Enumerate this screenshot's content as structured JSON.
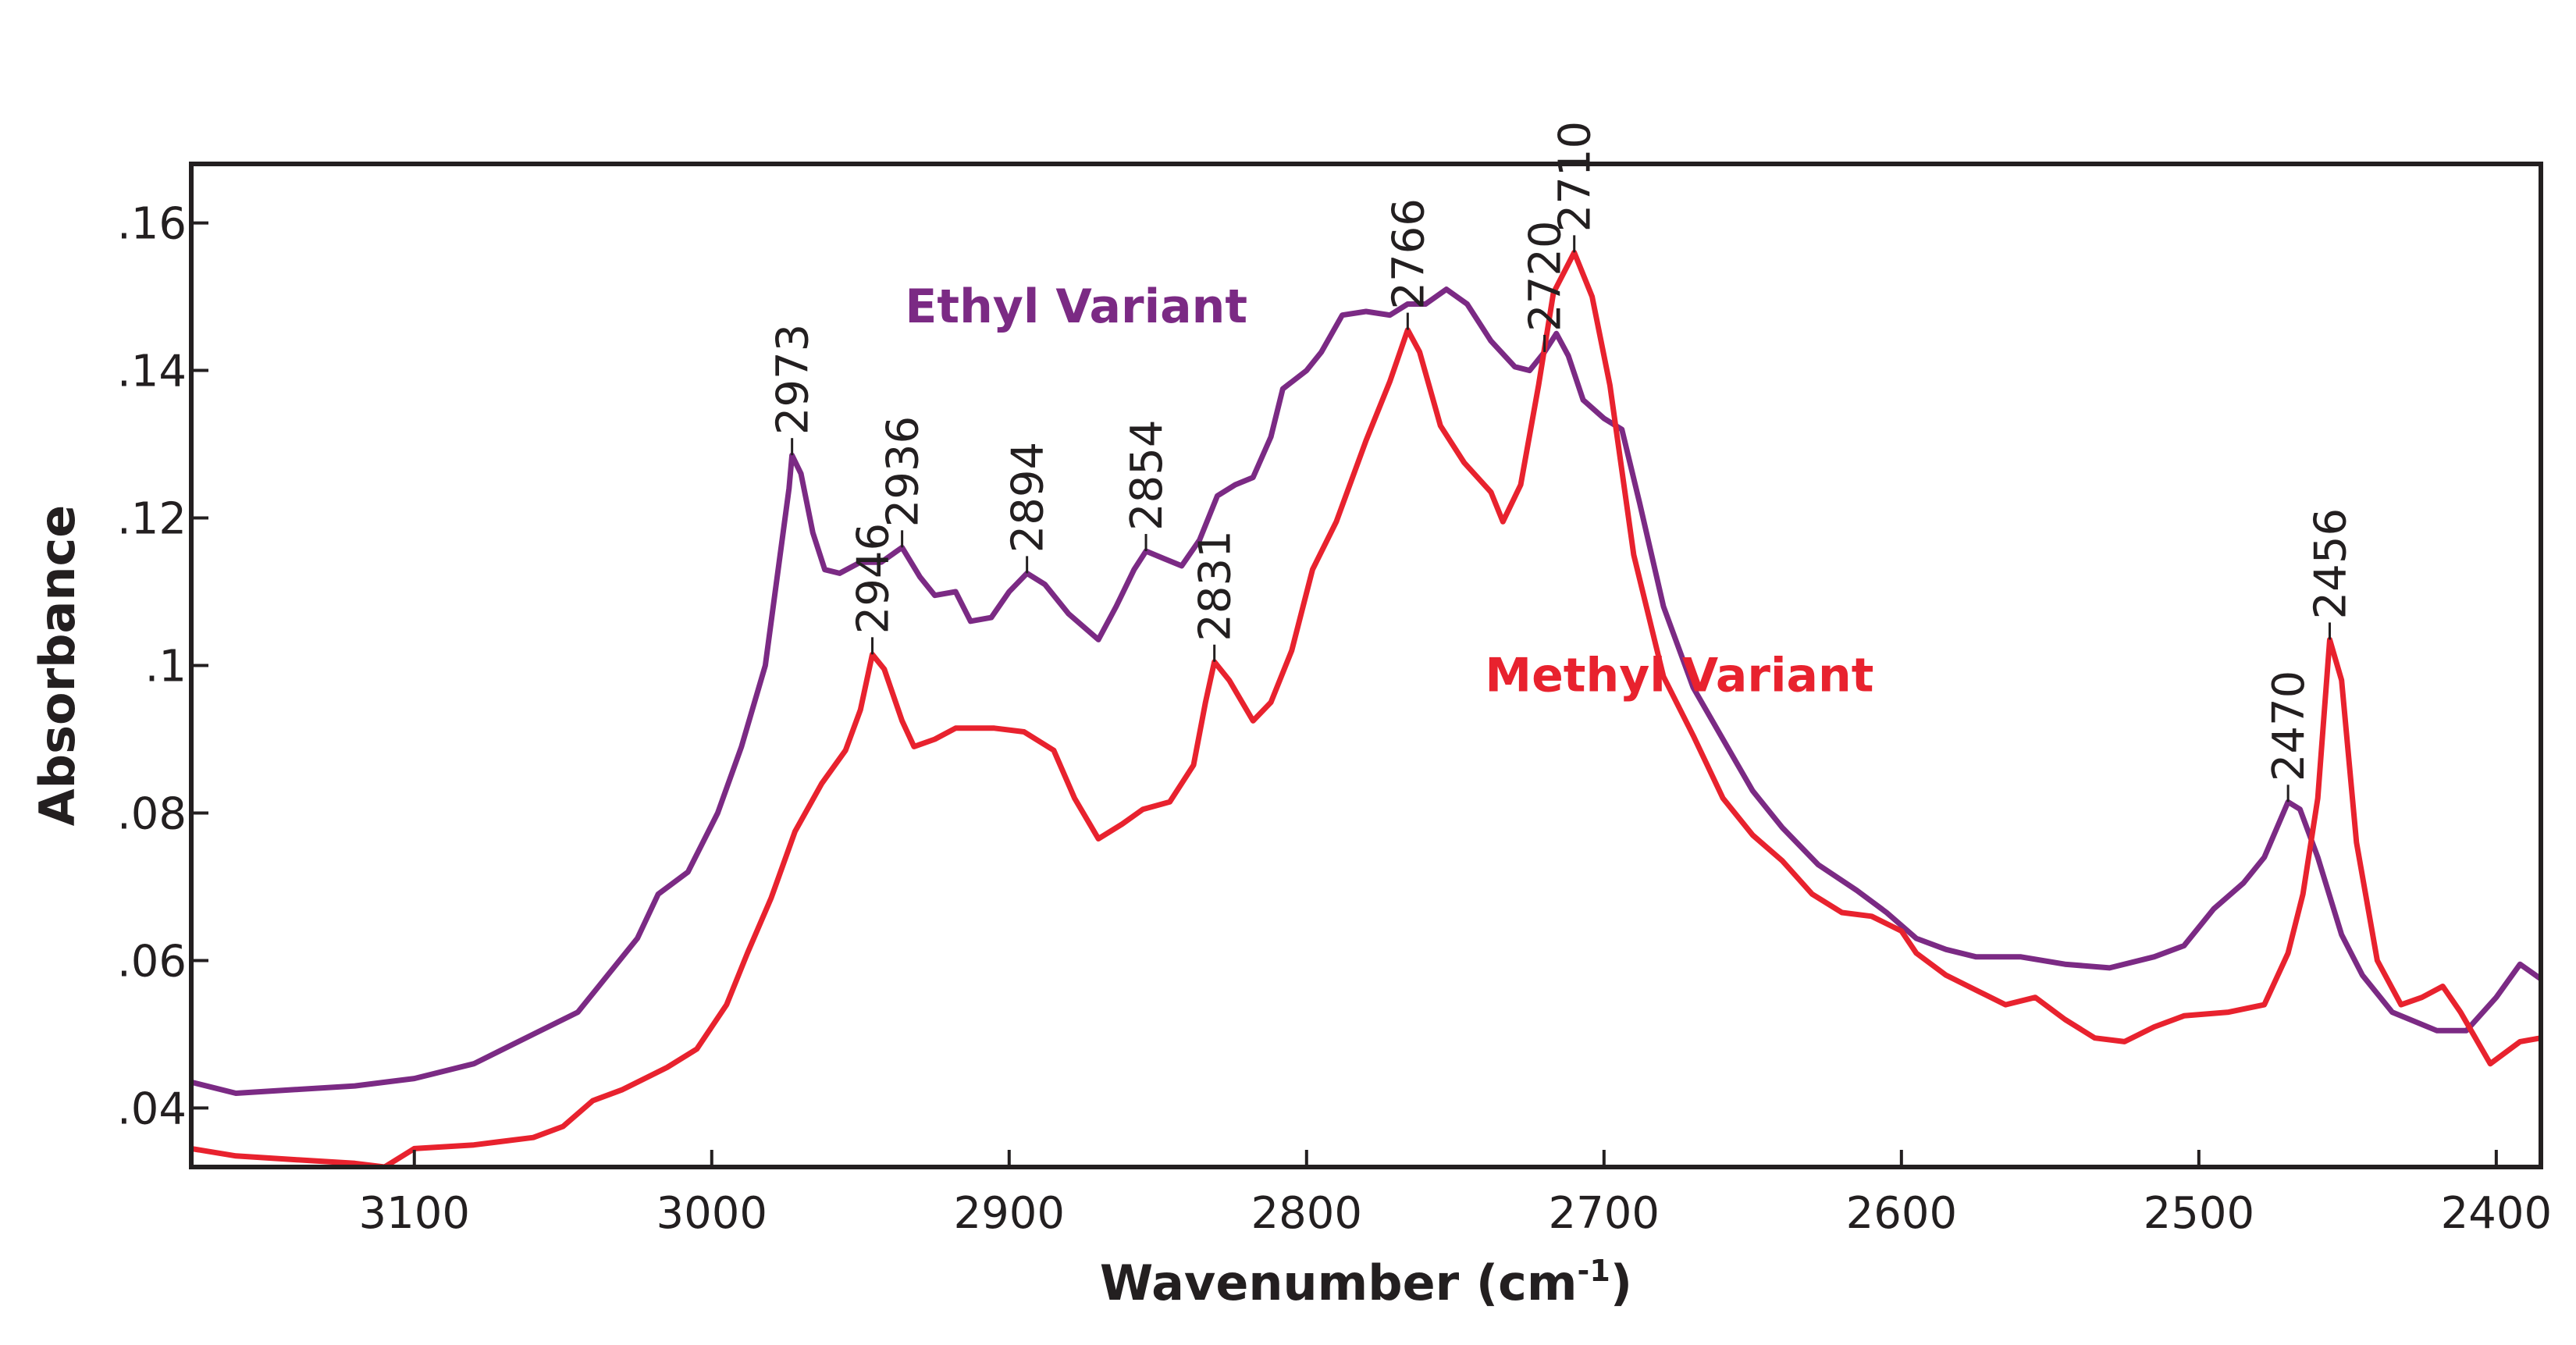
{
  "chart_data": {
    "type": "line",
    "title": "",
    "xlabel": "Wavenumber (cm",
    "xlabel_sup": "-1",
    "xlabel_close": ")",
    "ylabel": "Absorbance",
    "xlim": [
      3175,
      2385
    ],
    "ylim": [
      0.032,
      0.168
    ],
    "x_ticks": [
      {
        "value": 3100,
        "label": "3100"
      },
      {
        "value": 3000,
        "label": "3000"
      },
      {
        "value": 2900,
        "label": "2900"
      },
      {
        "value": 2800,
        "label": "2800"
      },
      {
        "value": 2700,
        "label": "2700"
      },
      {
        "value": 2600,
        "label": "2600"
      },
      {
        "value": 2500,
        "label": "2500"
      },
      {
        "value": 2400,
        "label": "2400"
      }
    ],
    "y_ticks": [
      {
        "value": 0.04,
        "label": ".04"
      },
      {
        "value": 0.06,
        "label": ".06"
      },
      {
        "value": 0.08,
        "label": ".08"
      },
      {
        "value": 0.1,
        "label": ".1"
      },
      {
        "value": 0.12,
        "label": ".12"
      },
      {
        "value": 0.14,
        "label": ".14"
      },
      {
        "value": 0.16,
        "label": ".16"
      }
    ],
    "series": [
      {
        "name": "Ethyl Variant",
        "color": "#7b2a84",
        "label_at": [
          2935,
          0.1465
        ],
        "points": [
          [
            3175,
            0.0435
          ],
          [
            3160,
            0.042
          ],
          [
            3140,
            0.0425
          ],
          [
            3120,
            0.043
          ],
          [
            3100,
            0.044
          ],
          [
            3080,
            0.046
          ],
          [
            3060,
            0.05
          ],
          [
            3045,
            0.053
          ],
          [
            3035,
            0.058
          ],
          [
            3025,
            0.063
          ],
          [
            3018,
            0.069
          ],
          [
            3008,
            0.072
          ],
          [
            2998,
            0.08
          ],
          [
            2990,
            0.089
          ],
          [
            2982,
            0.1
          ],
          [
            2978,
            0.112
          ],
          [
            2974,
            0.124
          ],
          [
            2973,
            0.1285
          ],
          [
            2970,
            0.126
          ],
          [
            2966,
            0.118
          ],
          [
            2962,
            0.113
          ],
          [
            2957,
            0.1125
          ],
          [
            2950,
            0.114
          ],
          [
            2943,
            0.114
          ],
          [
            2936,
            0.116
          ],
          [
            2930,
            0.112
          ],
          [
            2925,
            0.1095
          ],
          [
            2918,
            0.11
          ],
          [
            2913,
            0.106
          ],
          [
            2906,
            0.1065
          ],
          [
            2900,
            0.11
          ],
          [
            2894,
            0.1125
          ],
          [
            2888,
            0.111
          ],
          [
            2880,
            0.107
          ],
          [
            2870,
            0.1035
          ],
          [
            2864,
            0.108
          ],
          [
            2858,
            0.113
          ],
          [
            2854,
            0.1155
          ],
          [
            2848,
            0.1145
          ],
          [
            2842,
            0.1135
          ],
          [
            2836,
            0.117
          ],
          [
            2830,
            0.123
          ],
          [
            2824,
            0.1245
          ],
          [
            2818,
            0.1255
          ],
          [
            2812,
            0.131
          ],
          [
            2808,
            0.1375
          ],
          [
            2800,
            0.14
          ],
          [
            2795,
            0.1425
          ],
          [
            2788,
            0.1475
          ],
          [
            2780,
            0.148
          ],
          [
            2772,
            0.1475
          ],
          [
            2766,
            0.149
          ],
          [
            2760,
            0.149
          ],
          [
            2753,
            0.151
          ],
          [
            2746,
            0.149
          ],
          [
            2738,
            0.144
          ],
          [
            2730,
            0.1405
          ],
          [
            2725,
            0.14
          ],
          [
            2720,
            0.1425
          ],
          [
            2716,
            0.145
          ],
          [
            2712,
            0.142
          ],
          [
            2707,
            0.136
          ],
          [
            2700,
            0.1335
          ],
          [
            2694,
            0.132
          ],
          [
            2688,
            0.122
          ],
          [
            2680,
            0.108
          ],
          [
            2670,
            0.097
          ],
          [
            2660,
            0.09
          ],
          [
            2650,
            0.083
          ],
          [
            2640,
            0.078
          ],
          [
            2628,
            0.073
          ],
          [
            2615,
            0.0695
          ],
          [
            2605,
            0.0665
          ],
          [
            2595,
            0.063
          ],
          [
            2585,
            0.0615
          ],
          [
            2575,
            0.0605
          ],
          [
            2560,
            0.0605
          ],
          [
            2545,
            0.0595
          ],
          [
            2530,
            0.059
          ],
          [
            2515,
            0.0605
          ],
          [
            2505,
            0.062
          ],
          [
            2495,
            0.067
          ],
          [
            2485,
            0.0705
          ],
          [
            2478,
            0.074
          ],
          [
            2470,
            0.0815
          ],
          [
            2466,
            0.0805
          ],
          [
            2460,
            0.074
          ],
          [
            2452,
            0.0635
          ],
          [
            2445,
            0.058
          ],
          [
            2435,
            0.053
          ],
          [
            2420,
            0.0505
          ],
          [
            2410,
            0.0505
          ],
          [
            2400,
            0.055
          ],
          [
            2392,
            0.0595
          ],
          [
            2385,
            0.0575
          ]
        ]
      },
      {
        "name": "Methyl Variant",
        "color": "#e8222e",
        "label_at": [
          2740,
          0.0965
        ],
        "points": [
          [
            3175,
            0.0345
          ],
          [
            3160,
            0.0335
          ],
          [
            3140,
            0.033
          ],
          [
            3120,
            0.0325
          ],
          [
            3110,
            0.032
          ],
          [
            3100,
            0.0345
          ],
          [
            3080,
            0.035
          ],
          [
            3060,
            0.036
          ],
          [
            3050,
            0.0375
          ],
          [
            3040,
            0.041
          ],
          [
            3030,
            0.0425
          ],
          [
            3015,
            0.0455
          ],
          [
            3005,
            0.048
          ],
          [
            2995,
            0.054
          ],
          [
            2988,
            0.061
          ],
          [
            2980,
            0.0685
          ],
          [
            2972,
            0.0775
          ],
          [
            2963,
            0.084
          ],
          [
            2955,
            0.0885
          ],
          [
            2950,
            0.094
          ],
          [
            2946,
            0.1015
          ],
          [
            2942,
            0.0995
          ],
          [
            2936,
            0.0925
          ],
          [
            2932,
            0.089
          ],
          [
            2925,
            0.09
          ],
          [
            2918,
            0.0915
          ],
          [
            2905,
            0.0915
          ],
          [
            2895,
            0.091
          ],
          [
            2885,
            0.0885
          ],
          [
            2878,
            0.082
          ],
          [
            2870,
            0.0765
          ],
          [
            2862,
            0.0785
          ],
          [
            2855,
            0.0805
          ],
          [
            2846,
            0.0815
          ],
          [
            2838,
            0.0865
          ],
          [
            2834,
            0.095
          ],
          [
            2831,
            0.1005
          ],
          [
            2826,
            0.098
          ],
          [
            2818,
            0.0925
          ],
          [
            2812,
            0.095
          ],
          [
            2805,
            0.102
          ],
          [
            2798,
            0.113
          ],
          [
            2790,
            0.1195
          ],
          [
            2780,
            0.1305
          ],
          [
            2772,
            0.1385
          ],
          [
            2766,
            0.1455
          ],
          [
            2762,
            0.1425
          ],
          [
            2755,
            0.1325
          ],
          [
            2747,
            0.1275
          ],
          [
            2738,
            0.1235
          ],
          [
            2734,
            0.1195
          ],
          [
            2728,
            0.1245
          ],
          [
            2722,
            0.138
          ],
          [
            2717,
            0.1505
          ],
          [
            2710,
            0.156
          ],
          [
            2704,
            0.15
          ],
          [
            2698,
            0.138
          ],
          [
            2690,
            0.115
          ],
          [
            2680,
            0.0985
          ],
          [
            2670,
            0.0905
          ],
          [
            2660,
            0.082
          ],
          [
            2650,
            0.077
          ],
          [
            2640,
            0.0735
          ],
          [
            2630,
            0.069
          ],
          [
            2620,
            0.0665
          ],
          [
            2610,
            0.066
          ],
          [
            2600,
            0.064
          ],
          [
            2595,
            0.061
          ],
          [
            2585,
            0.058
          ],
          [
            2575,
            0.056
          ],
          [
            2565,
            0.054
          ],
          [
            2555,
            0.055
          ],
          [
            2545,
            0.052
          ],
          [
            2535,
            0.0495
          ],
          [
            2525,
            0.049
          ],
          [
            2515,
            0.051
          ],
          [
            2505,
            0.0525
          ],
          [
            2490,
            0.053
          ],
          [
            2478,
            0.054
          ],
          [
            2470,
            0.061
          ],
          [
            2465,
            0.069
          ],
          [
            2460,
            0.082
          ],
          [
            2456,
            0.1035
          ],
          [
            2452,
            0.098
          ],
          [
            2447,
            0.076
          ],
          [
            2440,
            0.06
          ],
          [
            2432,
            0.054
          ],
          [
            2425,
            0.055
          ],
          [
            2418,
            0.0565
          ],
          [
            2412,
            0.053
          ],
          [
            2402,
            0.046
          ],
          [
            2392,
            0.049
          ],
          [
            2385,
            0.0495
          ]
        ]
      }
    ],
    "annotations": [
      {
        "label": "2973",
        "x": 2973,
        "y": 0.1285
      },
      {
        "label": "2946",
        "x": 2946,
        "y": 0.1015
      },
      {
        "label": "2936",
        "x": 2936,
        "y": 0.116
      },
      {
        "label": "2894",
        "x": 2894,
        "y": 0.1125
      },
      {
        "label": "2854",
        "x": 2854,
        "y": 0.1155
      },
      {
        "label": "2831",
        "x": 2831,
        "y": 0.1005
      },
      {
        "label": "2766",
        "x": 2766,
        "y": 0.1455
      },
      {
        "label": "2720",
        "x": 2720,
        "y": 0.1425
      },
      {
        "label": "2710",
        "x": 2710,
        "y": 0.156
      },
      {
        "label": "2470",
        "x": 2470,
        "y": 0.0815
      },
      {
        "label": "2456",
        "x": 2456,
        "y": 0.1035
      }
    ]
  }
}
